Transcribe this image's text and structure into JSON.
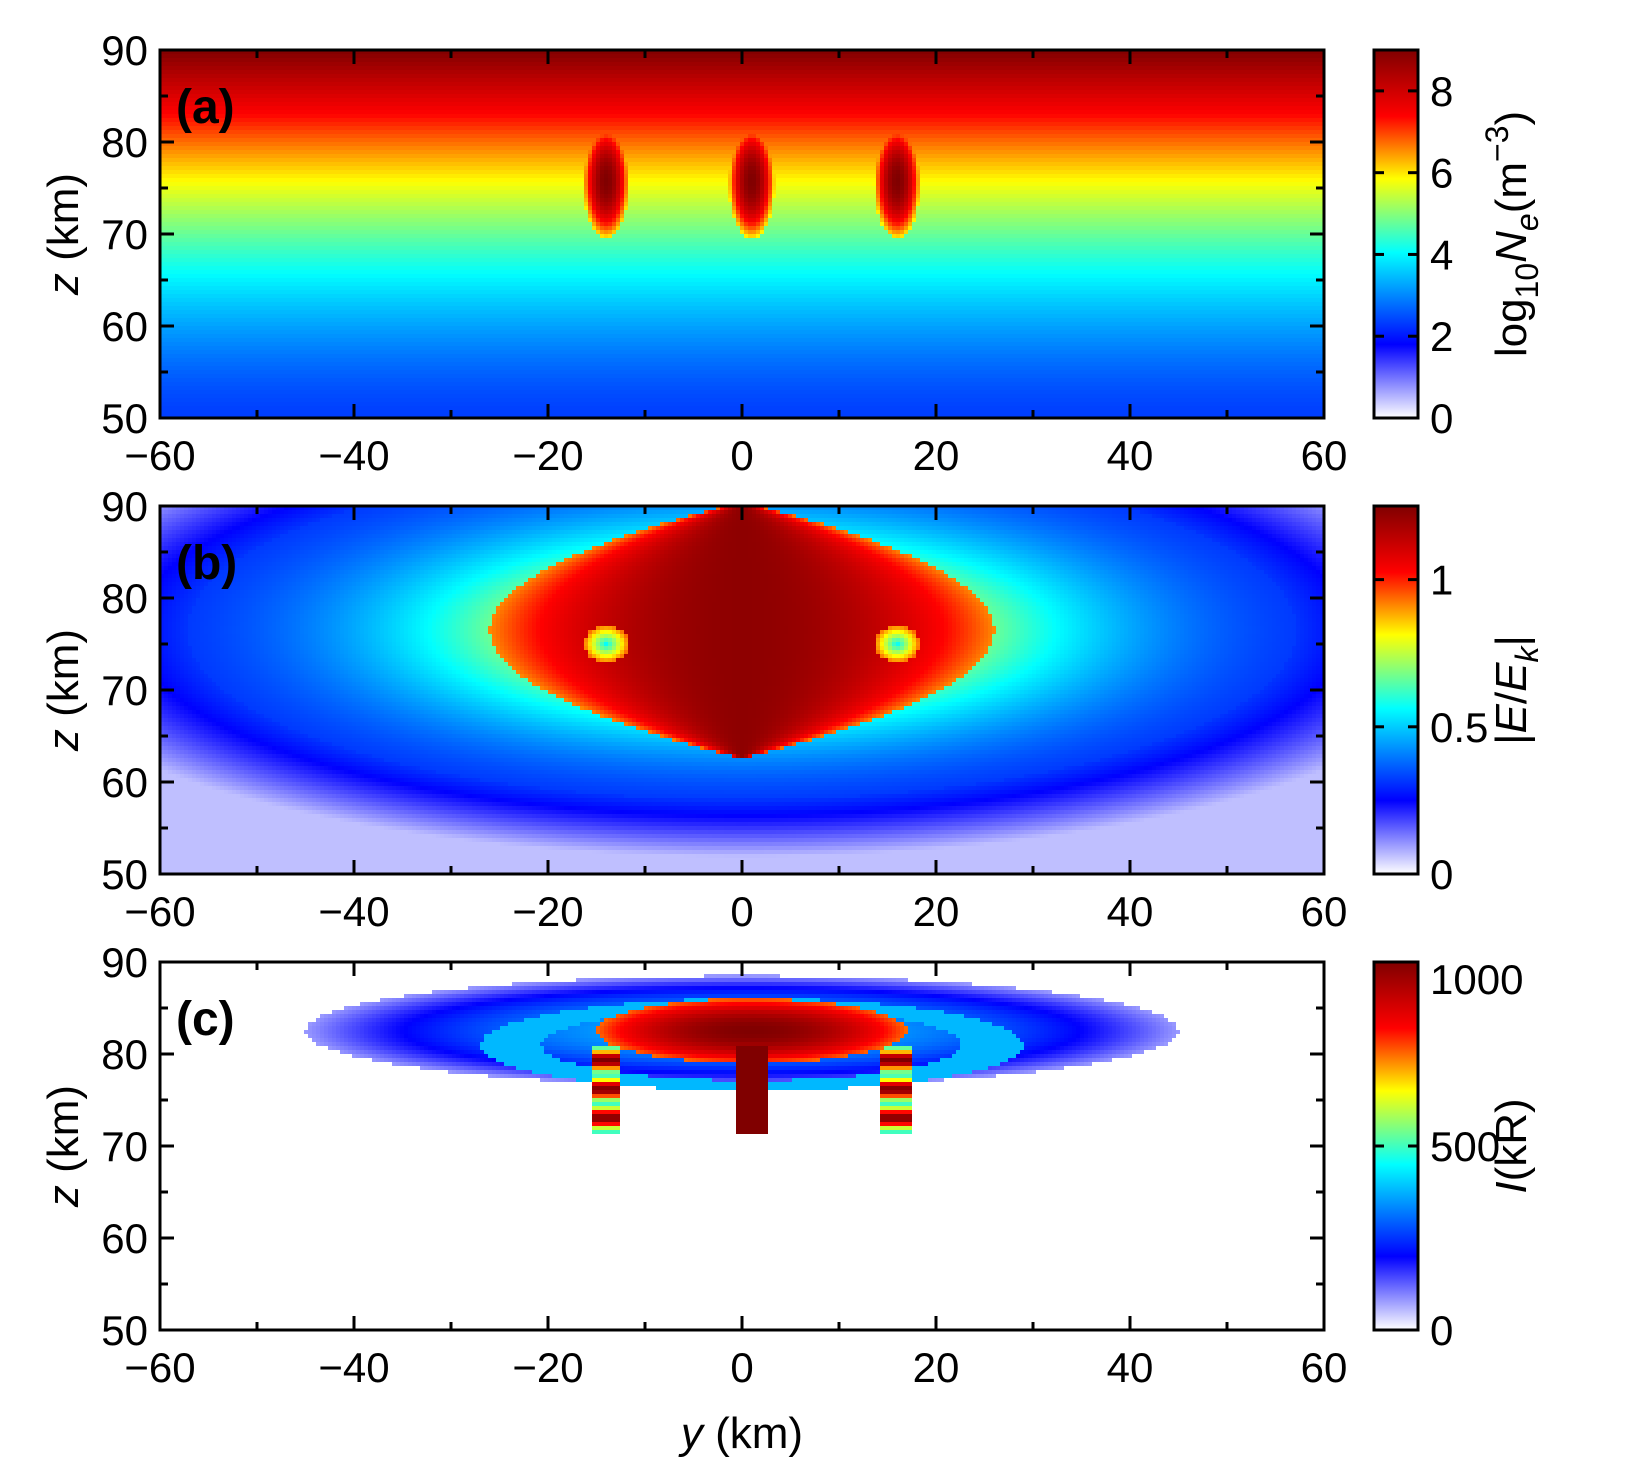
{
  "figure": {
    "xlabel_var": "y",
    "xlabel_unit": " (km)"
  },
  "colors": {
    "colormap": [
      "#ffffff",
      "#0000ff",
      "#00ffff",
      "#ffff00",
      "#ff0000",
      "#800000"
    ],
    "frame": "#000000"
  },
  "chart_data": [
    {
      "type": "heatmap",
      "panel_label": "(a)",
      "ylabel_var": "z",
      "ylabel_unit": " (km)",
      "xlim": [
        -60,
        60
      ],
      "ylim": [
        50,
        90
      ],
      "x_ticks": [
        -60,
        -40,
        -20,
        0,
        20,
        40,
        60
      ],
      "x_tick_labels": [
        "−60",
        "−40",
        "−20",
        "0",
        "20",
        "40",
        "60"
      ],
      "y_ticks": [
        50,
        60,
        70,
        80,
        90
      ],
      "y_tick_labels": [
        "50",
        "60",
        "70",
        "80",
        "90"
      ],
      "colorbar": {
        "label_prefix": "log",
        "label_sub": "10",
        "label_var": "N",
        "label_var_sub": "e",
        "label_unit_open": "(m",
        "label_unit_sup": "−3",
        "label_unit_close": ")",
        "range": [
          0,
          9
        ],
        "ticks": [
          0,
          2,
          4,
          6,
          8
        ],
        "tick_labels": [
          "0",
          "2",
          "4",
          "6",
          "8"
        ]
      },
      "field": {
        "kind": "layered_density",
        "description_values": "background log10 Ne rises from ~2.5 at 50 km to ~9 at 90 km; three dense columns at y = -14, 1, 16 km spanning 70-82 km",
        "column_y_km": [
          -14,
          1,
          16
        ],
        "column_z_range_km": [
          69.5,
          82
        ],
        "column_peak": 9
      }
    },
    {
      "type": "heatmap",
      "panel_label": "(b)",
      "ylabel_var": "z",
      "ylabel_unit": " (km)",
      "xlim": [
        -60,
        60
      ],
      "ylim": [
        50,
        90
      ],
      "x_ticks": [
        -60,
        -40,
        -20,
        0,
        20,
        40,
        60
      ],
      "x_tick_labels": [
        "−60",
        "−40",
        "−20",
        "0",
        "20",
        "40",
        "60"
      ],
      "y_ticks": [
        50,
        60,
        70,
        80,
        90
      ],
      "y_tick_labels": [
        "50",
        "60",
        "70",
        "80",
        "90"
      ],
      "colorbar": {
        "label_open": "|",
        "label_var": "E",
        "label_slash": "/",
        "label_var2": "E",
        "label_var2_sub": "k",
        "label_close": "|",
        "range": [
          0,
          1.25
        ],
        "ticks": [
          0,
          0.5,
          1
        ],
        "tick_labels": [
          "0",
          "0.5",
          "1"
        ]
      },
      "field": {
        "kind": "electric_field_lens",
        "description_values": "|E/Ek| peaks ~1.2 inside a lens centred at z = 76.5 km between y = -25 and 27 km, ring of ~0.35 at the outer ellipse reaching y = ±60 km",
        "center_z_km": 76.5,
        "core_half_width_km": 26,
        "peak": 1.25
      }
    },
    {
      "type": "heatmap",
      "panel_label": "(c)",
      "ylabel_var": "z",
      "ylabel_unit": " (km)",
      "xlim": [
        -60,
        60
      ],
      "ylim": [
        50,
        90
      ],
      "x_ticks": [
        -60,
        -40,
        -20,
        0,
        20,
        40,
        60
      ],
      "x_tick_labels": [
        "−60",
        "−40",
        "−20",
        "0",
        "20",
        "40",
        "60"
      ],
      "y_ticks": [
        50,
        60,
        70,
        80,
        90
      ],
      "y_tick_labels": [
        "50",
        "60",
        "70",
        "80",
        "90"
      ],
      "colorbar": {
        "label_var": "I",
        "label_unit": "(kR)",
        "range": [
          0,
          1000
        ],
        "ticks": [
          0,
          500,
          1000
        ],
        "tick_labels": [
          "0",
          "500",
          "1000"
        ]
      },
      "field": {
        "kind": "optical_emission",
        "description_values": "emission I peaks ~1000 kR in a core at z = 82.5 km, y = -10 to 12 km, halo extending to y = ±45 km; three streamer columns at y = -14, 1, 16 km down to ~71.5 km",
        "core_center_z_km": 82.5,
        "column_y_km": [
          -14,
          1,
          16
        ],
        "column_bottom_km": 71.5,
        "peak": 1000
      }
    }
  ]
}
